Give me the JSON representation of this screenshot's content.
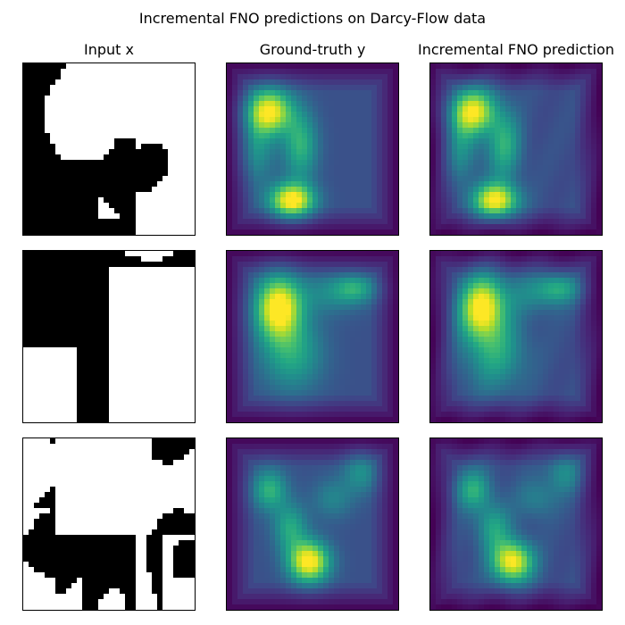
{
  "figure": {
    "title": "Incremental FNO predictions on Darcy-Flow data"
  },
  "chart_data": {
    "type": "heatmap",
    "grid": "3 rows x 3 columns of image panels, no axis ticks",
    "columns": [
      {
        "title": "Input x",
        "colormap": "binary (black / white)"
      },
      {
        "title": "Ground-truth y",
        "colormap": "viridis"
      },
      {
        "title": "Incremental FNO prediction",
        "colormap": "viridis"
      }
    ],
    "rows": 3,
    "resolution": "approximately 32 x 32 cells per panel",
    "colors": {
      "binary_high": "#000000",
      "binary_low": "#ffffff",
      "viridis": [
        "#440154",
        "#3b528b",
        "#21918c",
        "#5ec962",
        "#fde725"
      ]
    }
  }
}
